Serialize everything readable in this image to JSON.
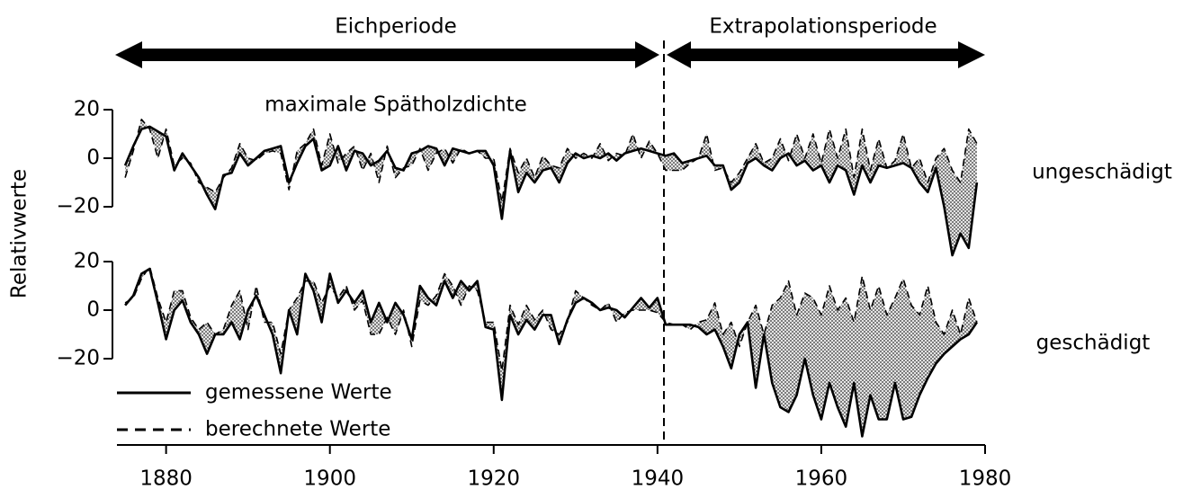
{
  "header": {
    "left": "Eichperiode",
    "right": "Extrapolationsperiode"
  },
  "chart_data": [
    {
      "type": "line",
      "title": "maximale Spätholzdichte",
      "ylabel": "Relativwerte",
      "label": "ungeschädigt",
      "xlim": [
        1874,
        1980
      ],
      "ylim": [
        -40,
        20
      ],
      "yticks": [
        20,
        0,
        {
          "value": -20,
          "label": "−20"
        }
      ],
      "x": [
        1875,
        1876,
        1877,
        1878,
        1879,
        1880,
        1881,
        1882,
        1883,
        1884,
        1885,
        1886,
        1887,
        1888,
        1889,
        1890,
        1891,
        1892,
        1893,
        1894,
        1895,
        1896,
        1897,
        1898,
        1899,
        1900,
        1901,
        1902,
        1903,
        1904,
        1905,
        1906,
        1907,
        1908,
        1909,
        1910,
        1911,
        1912,
        1913,
        1914,
        1915,
        1916,
        1917,
        1918,
        1919,
        1920,
        1921,
        1922,
        1923,
        1924,
        1925,
        1926,
        1927,
        1928,
        1929,
        1930,
        1931,
        1932,
        1933,
        1934,
        1935,
        1936,
        1937,
        1938,
        1939,
        1940,
        1941,
        1942,
        1943,
        1944,
        1945,
        1946,
        1947,
        1948,
        1949,
        1950,
        1951,
        1952,
        1953,
        1954,
        1955,
        1956,
        1957,
        1958,
        1959,
        1960,
        1961,
        1962,
        1963,
        1964,
        1965,
        1966,
        1967,
        1968,
        1969,
        1970,
        1971,
        1972,
        1973,
        1974,
        1975,
        1976,
        1977,
        1978,
        1979
      ],
      "series": [
        {
          "name": "gemessene Werte",
          "color": "#000000",
          "style": "solid",
          "values": [
            -3,
            5,
            12,
            13,
            11,
            9,
            -5,
            2,
            -3,
            -8,
            -15,
            -21,
            -7,
            -6,
            2,
            -3,
            0,
            3,
            4,
            5,
            -10,
            -2,
            5,
            8,
            -5,
            -3,
            5,
            -5,
            3,
            2,
            -3,
            -1,
            3,
            -4,
            -5,
            2,
            3,
            5,
            4,
            -3,
            4,
            3,
            2,
            3,
            3,
            -3,
            -25,
            3,
            -14,
            -6,
            -10,
            -5,
            -4,
            -10,
            -2,
            2,
            0,
            1,
            0,
            2,
            -1,
            2,
            3,
            4,
            3,
            2,
            1,
            2,
            -2,
            -1,
            0,
            1,
            -3,
            -3,
            -13,
            -10,
            -2,
            0,
            -3,
            -5,
            0,
            2,
            -3,
            -1,
            -5,
            -3,
            -10,
            -3,
            -5,
            -15,
            -3,
            -10,
            -3,
            -4,
            -3,
            -2,
            -4,
            -10,
            -14,
            -4,
            -20,
            -40,
            -31,
            -37,
            -10
          ]
        },
        {
          "name": "berechnete Werte",
          "color": "#000000",
          "style": "dashed",
          "values": [
            -8,
            3,
            16,
            12,
            0,
            12,
            -3,
            0,
            -2,
            -10,
            -12,
            -14,
            -8,
            -4,
            6,
            0,
            -1,
            2,
            3,
            2,
            -13,
            3,
            6,
            12,
            -3,
            10,
            -2,
            2,
            5,
            -5,
            2,
            -10,
            5,
            -8,
            -4,
            -3,
            4,
            -5,
            2,
            4,
            -2,
            4,
            2,
            3,
            0,
            0,
            -18,
            4,
            -6,
            0,
            -8,
            1,
            -3,
            -4,
            4,
            0,
            2,
            0,
            6,
            -1,
            2,
            1,
            10,
            0,
            7,
            2,
            -5,
            -5,
            -5,
            -2,
            0,
            10,
            -5,
            -4,
            -10,
            -6,
            0,
            6,
            -2,
            0,
            8,
            -1,
            10,
            0,
            10,
            -2,
            12,
            0,
            12,
            -8,
            12,
            -5,
            8,
            -4,
            -1,
            10,
            -4,
            0,
            -10,
            0,
            4,
            -5,
            -10,
            12,
            6
          ]
        }
      ]
    },
    {
      "type": "line",
      "label": "geschädigt",
      "xlim": [
        1874,
        1980
      ],
      "ylim": [
        -50,
        20
      ],
      "xticks": [
        1880,
        1900,
        1920,
        1940,
        1960,
        1980
      ],
      "yticks": [
        20,
        0,
        {
          "value": -20,
          "label": "−20"
        }
      ],
      "x": [
        1875,
        1876,
        1877,
        1878,
        1879,
        1880,
        1881,
        1882,
        1883,
        1884,
        1885,
        1886,
        1887,
        1888,
        1889,
        1890,
        1891,
        1892,
        1893,
        1894,
        1895,
        1896,
        1897,
        1898,
        1899,
        1900,
        1901,
        1902,
        1903,
        1904,
        1905,
        1906,
        1907,
        1908,
        1909,
        1910,
        1911,
        1912,
        1913,
        1914,
        1915,
        1916,
        1917,
        1918,
        1919,
        1920,
        1921,
        1922,
        1923,
        1924,
        1925,
        1926,
        1927,
        1928,
        1929,
        1930,
        1931,
        1932,
        1933,
        1934,
        1935,
        1936,
        1937,
        1938,
        1939,
        1940,
        1941,
        1942,
        1943,
        1944,
        1945,
        1946,
        1947,
        1948,
        1949,
        1950,
        1951,
        1952,
        1953,
        1954,
        1955,
        1956,
        1957,
        1958,
        1959,
        1960,
        1961,
        1962,
        1963,
        1964,
        1965,
        1966,
        1967,
        1968,
        1969,
        1970,
        1971,
        1972,
        1973,
        1974,
        1975,
        1976,
        1977,
        1978,
        1979
      ],
      "series": [
        {
          "color": "#000000",
          "style": "solid",
          "values": [
            2,
            6,
            15,
            17,
            3,
            -12,
            0,
            4,
            -5,
            -10,
            -18,
            -10,
            -10,
            -5,
            -12,
            0,
            6,
            -2,
            -10,
            -26,
            0,
            -10,
            15,
            8,
            -5,
            15,
            3,
            8,
            3,
            8,
            -5,
            3,
            -5,
            3,
            -2,
            -12,
            10,
            5,
            2,
            12,
            5,
            12,
            8,
            12,
            -7,
            -8,
            -37,
            -2,
            -10,
            -4,
            -8,
            -2,
            -2,
            -14,
            -4,
            3,
            5,
            3,
            0,
            1,
            0,
            -3,
            1,
            5,
            1,
            5,
            -6,
            -6,
            -6,
            -6,
            -7,
            -10,
            -8,
            -15,
            -24,
            -10,
            -5,
            -32,
            -10,
            -30,
            -40,
            -42,
            -35,
            -20,
            -35,
            -45,
            -30,
            -40,
            -48,
            -30,
            -52,
            -35,
            -45,
            -45,
            -30,
            -45,
            -44,
            -35,
            -28,
            -22,
            -18,
            -15,
            -12,
            -10,
            -5
          ]
        },
        {
          "color": "#000000",
          "style": "dashed",
          "values": [
            3,
            5,
            13,
            18,
            5,
            -5,
            8,
            8,
            -3,
            -8,
            -5,
            -10,
            -8,
            2,
            8,
            -8,
            10,
            -5,
            -5,
            -18,
            0,
            5,
            12,
            12,
            3,
            10,
            5,
            10,
            0,
            4,
            -10,
            -10,
            -3,
            -10,
            0,
            -15,
            4,
            2,
            6,
            15,
            10,
            2,
            10,
            8,
            -5,
            -5,
            -25,
            2,
            -6,
            2,
            -4,
            0,
            -8,
            -10,
            -5,
            8,
            5,
            2,
            0,
            3,
            -5,
            -1,
            0,
            0,
            0,
            -1,
            -5,
            -6,
            -6,
            -8,
            -5,
            -4,
            3,
            -10,
            -5,
            -15,
            -5,
            2,
            -10,
            2,
            5,
            12,
            -2,
            7,
            5,
            -2,
            10,
            0,
            5,
            -5,
            14,
            0,
            10,
            -2,
            5,
            13,
            2,
            -2,
            10,
            -5,
            -10,
            0,
            -10,
            5,
            -5
          ]
        }
      ]
    }
  ]
}
